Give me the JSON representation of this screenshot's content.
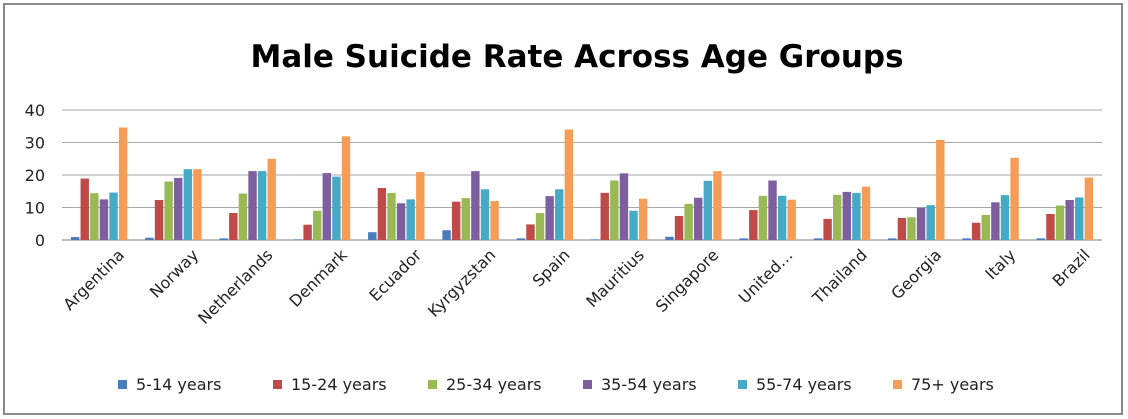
{
  "chart_data": {
    "type": "bar",
    "title": "Male Suicide Rate Across Age Groups",
    "xlabel": "",
    "ylabel": "",
    "ylim": [
      0,
      40
    ],
    "yticks": [
      0,
      10,
      20,
      30,
      40
    ],
    "grid": true,
    "legend_position": "bottom",
    "categories": [
      "Argentina",
      "Norway",
      "Netherlands",
      "Denmark",
      "Ecuador",
      "Kyrgyzstan",
      "Spain",
      "Mauritius",
      "Singapore",
      "United…",
      "Thailand",
      "Georgia",
      "Italy",
      "Brazil"
    ],
    "series": [
      {
        "name": "5-14 years",
        "color": "#4a7bbd",
        "values": [
          0.9,
          0.7,
          0.5,
          0.2,
          2.4,
          3.0,
          0.5,
          0.2,
          1.0,
          0.5,
          0.5,
          0.5,
          0.5,
          0.5
        ]
      },
      {
        "name": "15-24 years",
        "color": "#be4b48",
        "values": [
          18.9,
          12.3,
          8.3,
          4.7,
          16.0,
          11.8,
          4.8,
          14.5,
          7.4,
          9.2,
          6.5,
          6.8,
          5.3,
          8.0
        ]
      },
      {
        "name": "25-34 years",
        "color": "#98b954",
        "values": [
          14.4,
          18.0,
          14.3,
          9.0,
          14.5,
          12.9,
          8.3,
          18.3,
          11.1,
          13.6,
          13.9,
          7.0,
          7.7,
          10.6
        ]
      },
      {
        "name": "35-54 years",
        "color": "#7d5fa0",
        "values": [
          12.5,
          19.1,
          21.2,
          20.6,
          11.3,
          21.2,
          13.5,
          20.5,
          13.0,
          18.3,
          14.8,
          9.9,
          11.6,
          12.3
        ]
      },
      {
        "name": "55-74 years",
        "color": "#46aac5",
        "values": [
          14.6,
          21.8,
          21.2,
          19.5,
          12.5,
          15.6,
          15.6,
          9.0,
          18.2,
          13.6,
          14.5,
          10.7,
          13.8,
          13.1
        ]
      },
      {
        "name": "75+ years",
        "color": "#f59d56",
        "values": [
          34.6,
          21.8,
          25.0,
          31.9,
          20.9,
          12.0,
          34.0,
          12.7,
          21.2,
          12.4,
          16.4,
          30.8,
          25.3,
          19.2
        ]
      }
    ]
  }
}
